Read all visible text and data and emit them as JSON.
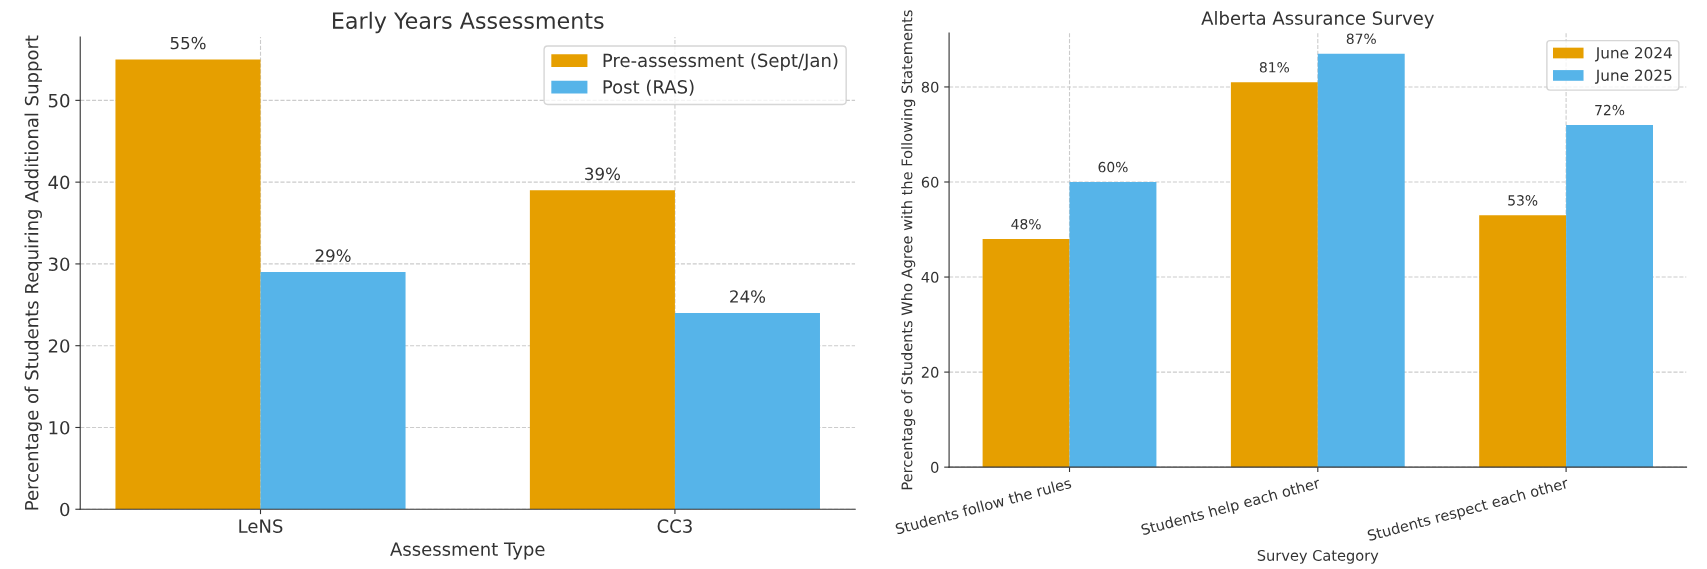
{
  "chart_data": [
    {
      "type": "bar",
      "title": "Early Years Assessments",
      "xlabel": "Assessment Type",
      "ylabel": "Percentage of Students Requiring Additional Support",
      "categories": [
        "LeNS",
        "CC3"
      ],
      "series": [
        {
          "name": "Pre-assessment (Sept/Jan)",
          "color": "#e69f00",
          "values": [
            55,
            39
          ],
          "value_labels": [
            "55%",
            "39%"
          ]
        },
        {
          "name": "Post (RAS)",
          "color": "#56b4e9",
          "values": [
            29,
            24
          ],
          "value_labels": [
            "29%",
            "24%"
          ]
        }
      ],
      "ylim": [
        0,
        57.75
      ],
      "yticks": [
        0,
        10,
        20,
        30,
        40,
        50
      ],
      "grid": true,
      "legend": "top right"
    },
    {
      "type": "bar",
      "title": "Alberta Assurance Survey",
      "xlabel": "Survey Category",
      "ylabel": "Percentage of Students Who Agree with the Following Statements",
      "categories": [
        "Students follow the rules",
        "Students help each other",
        "Students respect each other"
      ],
      "series": [
        {
          "name": "June 2024",
          "color": "#e69f00",
          "values": [
            48,
            81,
            53
          ],
          "value_labels": [
            "48%",
            "81%",
            "53%"
          ]
        },
        {
          "name": "June 2025",
          "color": "#56b4e9",
          "values": [
            60,
            87,
            72
          ],
          "value_labels": [
            "60%",
            "87%",
            "72%"
          ]
        }
      ],
      "ylim": [
        0,
        91.35
      ],
      "yticks": [
        0,
        20,
        40,
        60,
        80
      ],
      "grid": true,
      "legend": "top right"
    }
  ]
}
